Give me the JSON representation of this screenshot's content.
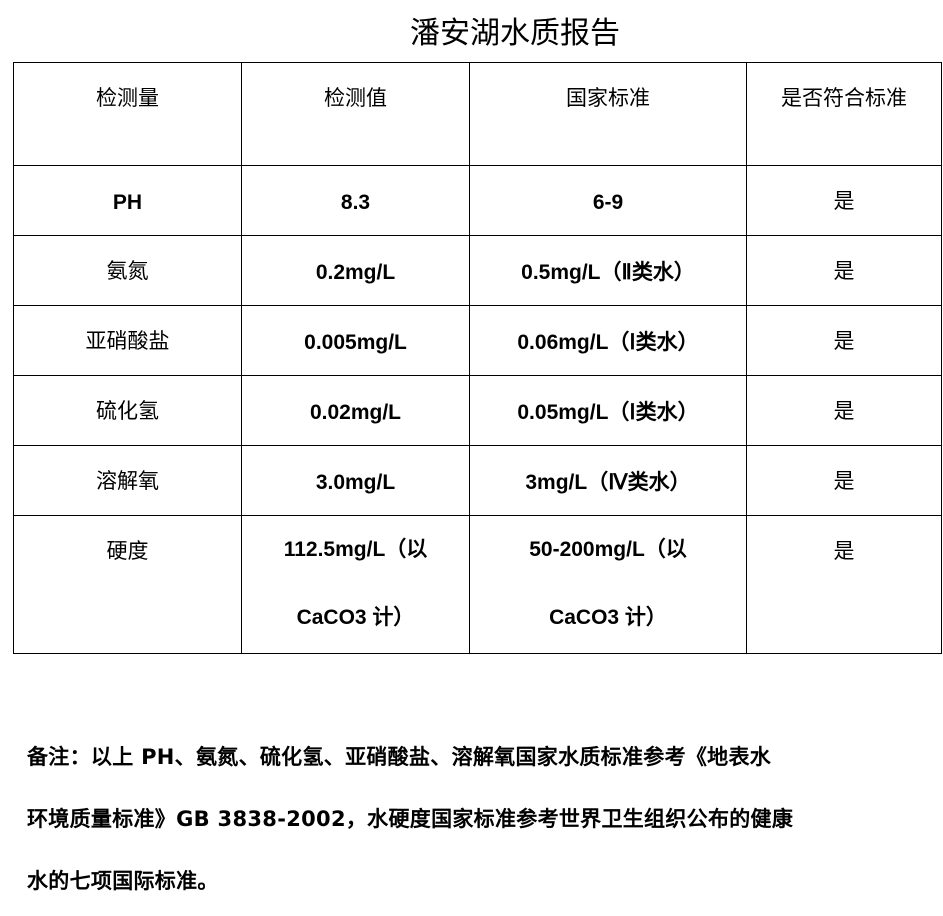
{
  "title": "潘安湖水质报告",
  "table": {
    "headers": [
      "检测量",
      "检测值",
      "国家标准",
      "是否符合标准"
    ],
    "rows": [
      {
        "item": "PH",
        "value": "8.3",
        "standard": "6-9",
        "ok": "是"
      },
      {
        "item": "氨氮",
        "value": "0.2mg/L",
        "standard": "0.5mg/L（Ⅱ类水）",
        "ok": "是"
      },
      {
        "item": "亚硝酸盐",
        "value": "0.005mg/L",
        "standard": "0.06mg/L（Ⅰ类水）",
        "ok": "是"
      },
      {
        "item": "硫化氢",
        "value": "0.02mg/L",
        "standard": "0.05mg/L（Ⅰ类水）",
        "ok": "是"
      },
      {
        "item": "溶解氧",
        "value": "3.0mg/L",
        "standard": "3mg/L（Ⅳ类水）",
        "ok": "是"
      },
      {
        "item": "硬度",
        "value": "112.5mg/L（以CaCO3 计）",
        "standard": "50-200mg/L（以CaCO3 计）",
        "ok": "是"
      }
    ]
  },
  "notes": {
    "lines": [
      "备注：以上 PH、氨氮、硫化氢、亚硝酸盐、溶解氧国家水质标准参考《地表水",
      "环境质量标准》GB 3838-2002，水硬度国家标准参考世界卫生组织公布的健康",
      "水的七项国际标准。"
    ]
  }
}
